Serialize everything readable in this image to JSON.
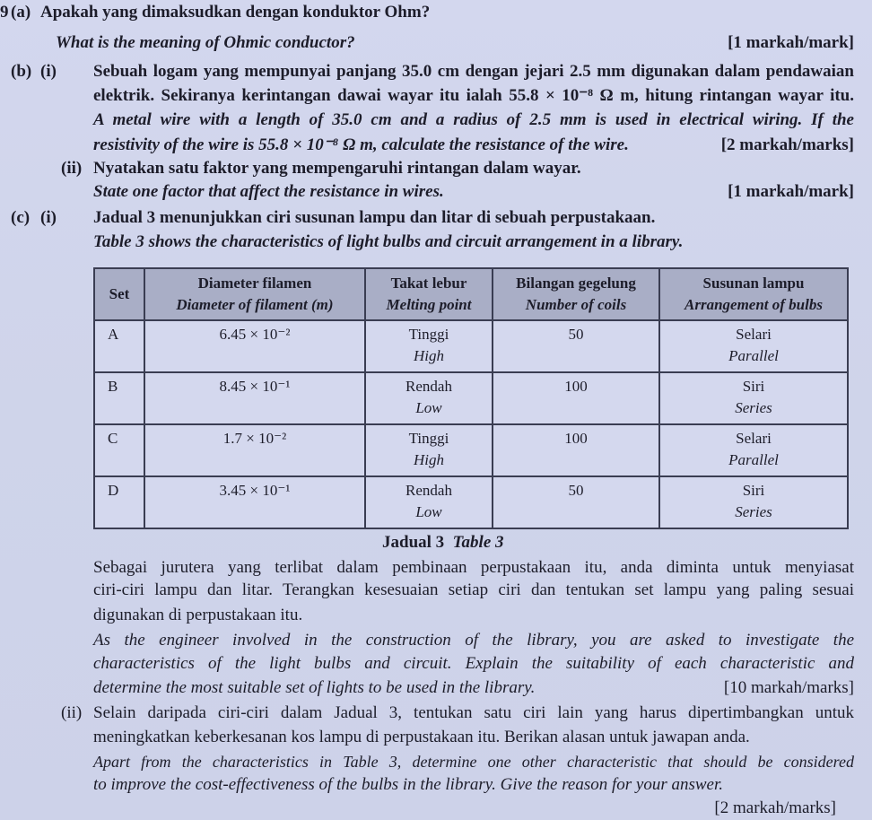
{
  "question_number": "9",
  "part_a": {
    "label": "(a)",
    "malay": "Apakah yang dimaksudkan dengan konduktor Ohm?",
    "english": "What is the meaning of Ohmic conductor?",
    "marks": "[1 markah/mark]"
  },
  "part_b": {
    "label": "(b)",
    "i": {
      "label": "(i)",
      "malay_lines": [
        "Sebuah logam yang mempunyai panjang 35.0 cm dengan jejari 2.5 mm digunakan dalam pendawaian",
        "elektrik. Sekiranya kerintangan dawai wayar itu ialah 55.8 × 10⁻⁸ Ω m, hitung rintangan wayar itu."
      ],
      "english_lines": [
        "A metal wire with a length of 35.0 cm and a radius of 2.5 mm is used in electrical wiring. If the",
        "resistivity of the wire is 55.8 × 10⁻⁸ Ω m, calculate the resistance of the wire."
      ],
      "marks": "[2 markah/marks]"
    },
    "ii": {
      "label": "(ii)",
      "malay": "Nyatakan satu faktor yang mempengaruhi rintangan dalam wayar.",
      "english": "State one factor that affect the resistance in wires.",
      "marks": "[1 markah/mark]"
    }
  },
  "part_c": {
    "label": "(c)",
    "i": {
      "label": "(i)",
      "malay": "Jadual 3 menunjukkan ciri susunan lampu dan litar di sebuah perpustakaan.",
      "english": "Table 3 shows the characteristics of light bulbs and circuit arrangement in a library.",
      "table": {
        "headers": [
          {
            "malay": "Set",
            "english": ""
          },
          {
            "malay": "Diameter filamen",
            "english": "Diameter of filament (m)"
          },
          {
            "malay": "Takat lebur",
            "english": "Melting point"
          },
          {
            "malay": "Bilangan gegelung",
            "english": "Number of coils"
          },
          {
            "malay": "Susunan lampu",
            "english": "Arrangement of bulbs"
          }
        ],
        "rows": [
          {
            "set": "A",
            "diameter": "6.45 × 10⁻²",
            "melting_malay": "Tinggi",
            "melting_english": "High",
            "coils": "50",
            "arrangement_malay": "Selari",
            "arrangement_english": "Parallel"
          },
          {
            "set": "B",
            "diameter": "8.45 × 10⁻¹",
            "melting_malay": "Rendah",
            "melting_english": "Low",
            "coils": "100",
            "arrangement_malay": "Siri",
            "arrangement_english": "Series"
          },
          {
            "set": "C",
            "diameter": "1.7 × 10⁻²",
            "melting_malay": "Tinggi",
            "melting_english": "High",
            "coils": "100",
            "arrangement_malay": "Selari",
            "arrangement_english": "Parallel"
          },
          {
            "set": "D",
            "diameter": "3.45 × 10⁻¹",
            "melting_malay": "Rendah",
            "melting_english": "Low",
            "coils": "50",
            "arrangement_malay": "Siri",
            "arrangement_english": "Series"
          }
        ],
        "caption_malay": "Jadual 3",
        "caption_english": "Table 3"
      },
      "malay_lines": [
        "Sebagai jurutera yang terlibat dalam pembinaan perpustakaan itu, anda diminta untuk menyiasat",
        "ciri-ciri lampu dan litar. Terangkan kesesuaian setiap ciri dan tentukan set lampu yang paling sesuai",
        "digunakan di perpustakaan itu."
      ],
      "english_lines": [
        "As the engineer involved in the construction of the library, you are asked to investigate the",
        "characteristics of the light bulbs and circuit. Explain the suitability of each characteristic and",
        "determine the most suitable set of lights to be used in the library."
      ],
      "marks": "[10 markah/marks]"
    },
    "ii": {
      "label": "(ii)",
      "malay_lines": [
        "Selain daripada ciri-ciri dalam Jadual 3, tentukan satu ciri lain yang harus dipertimbangkan untuk",
        "meningkatkan keberkesanan kos lampu di perpustakaan itu. Berikan alasan untuk jawapan anda."
      ],
      "english_lines": [
        "Apart from the characteristics in Table 3, determine one other characteristic that should be considered",
        "to improve the cost-effectiveness of the bulbs in the library. Give the reason for your answer."
      ],
      "marks": "[2 markah/marks]"
    }
  }
}
